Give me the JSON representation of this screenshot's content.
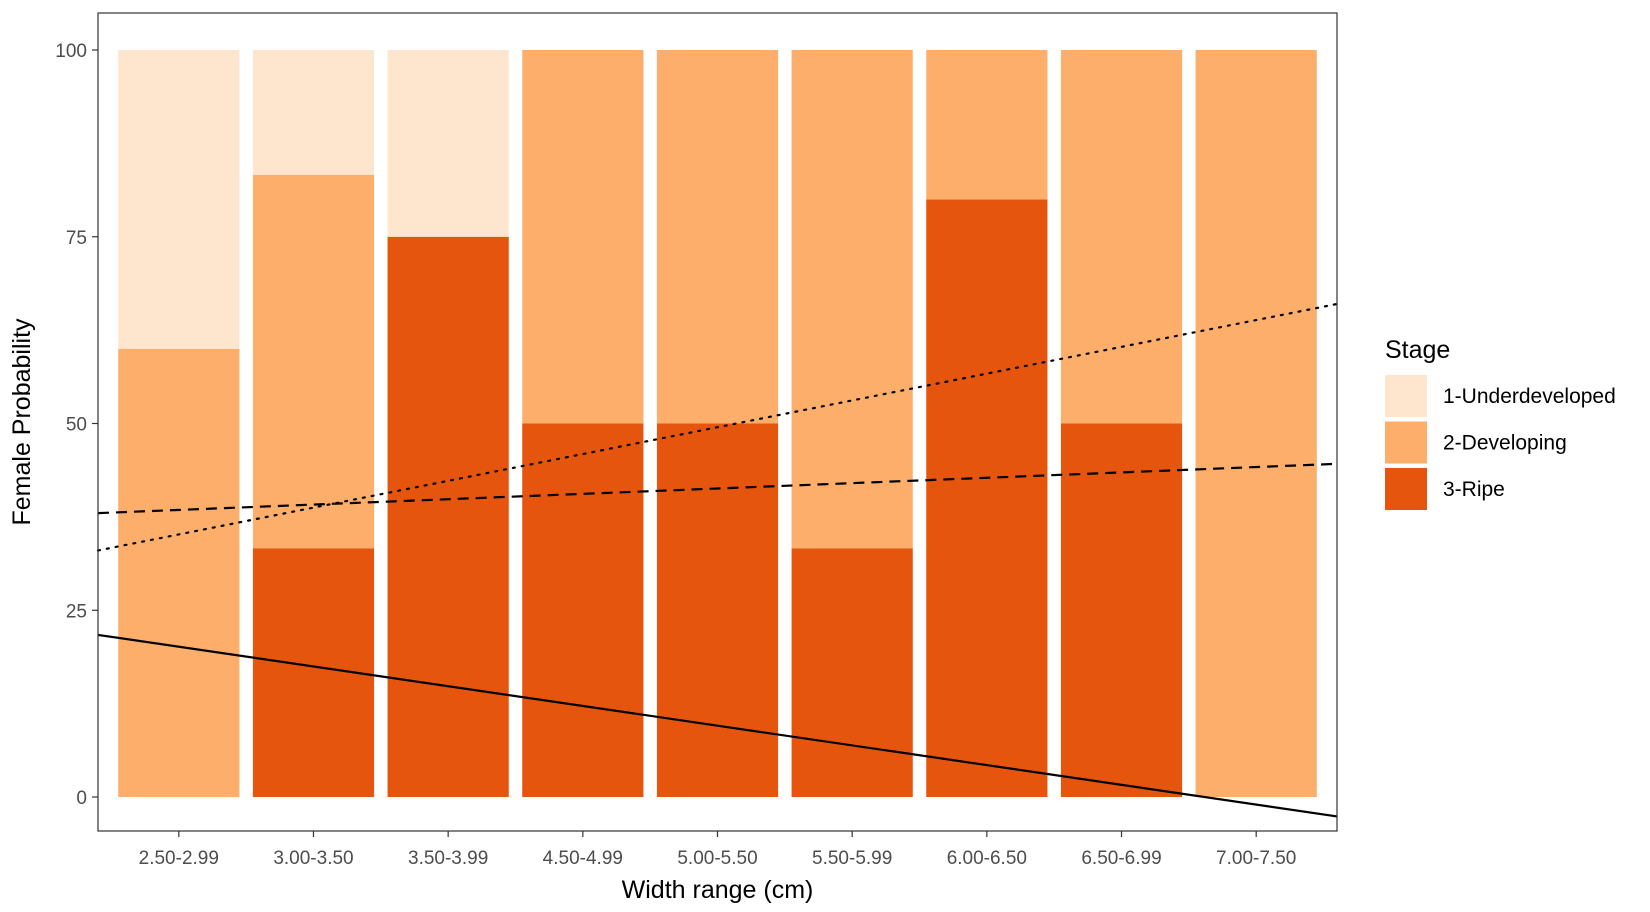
{
  "chart_data": {
    "type": "bar",
    "stacked": true,
    "xlabel": "Width range (cm)",
    "ylabel": "Female Probability",
    "ylim": [
      0,
      100
    ],
    "yticks": [
      0,
      25,
      50,
      75,
      100
    ],
    "categories": [
      "2.50-2.99",
      "3.00-3.50",
      "3.50-3.99",
      "4.50-4.99",
      "5.00-5.50",
      "5.50-5.99",
      "6.00-6.50",
      "6.50-6.99",
      "7.00-7.50"
    ],
    "series": [
      {
        "name": "3-Ripe",
        "color": "#e6550d",
        "values": [
          0,
          33.3,
          75,
          50,
          50,
          33.3,
          80,
          50,
          0
        ]
      },
      {
        "name": "2-Developing",
        "color": "#fdae6b",
        "values": [
          60,
          50,
          0,
          50,
          50,
          66.7,
          20,
          50,
          100
        ]
      },
      {
        "name": "1-Underdeveloped",
        "color": "#fee6ce",
        "values": [
          40,
          16.7,
          25,
          0,
          0,
          0,
          0,
          0,
          0
        ]
      }
    ],
    "legend": {
      "title": "Stage",
      "position": "right",
      "order": [
        "1-Underdeveloped",
        "2-Developing",
        "3-Ripe"
      ]
    },
    "trend_lines": [
      {
        "style": "solid",
        "y_at_left_edge": 21.7,
        "y_at_right_edge": -2.6
      },
      {
        "style": "dashed",
        "y_at_left_edge": 38.0,
        "y_at_right_edge": 44.6
      },
      {
        "style": "dotted",
        "y_at_left_edge": 33.0,
        "y_at_right_edge": 66.0
      }
    ],
    "grid": false,
    "panel_border": true
  }
}
